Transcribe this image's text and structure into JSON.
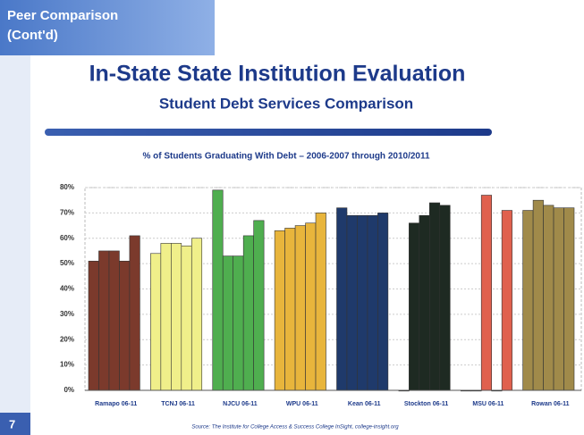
{
  "slide": {
    "section": "Peer Comparison",
    "section_sub": "(Cont'd)",
    "title": "In-State State Institution Evaluation",
    "subtitle": "Student Debt Services Comparison",
    "source": "Source: The Institute for College Access & Success College InSight, college-insight.org",
    "page": "7"
  },
  "chart_data": {
    "type": "bar",
    "title": "% of Students Graduating With Debt – 2006-2007 through 2010/2011",
    "ylim": [
      0,
      80
    ],
    "yticks": [
      {
        "value": 0,
        "label": "0%"
      },
      {
        "value": 10,
        "label": "10%"
      },
      {
        "value": 20,
        "label": "20%"
      },
      {
        "value": 30,
        "label": "30%"
      },
      {
        "value": 40,
        "label": "40%"
      },
      {
        "value": 50,
        "label": "50%"
      },
      {
        "value": 60,
        "label": "60%"
      },
      {
        "value": 70,
        "label": "70%"
      },
      {
        "value": 80,
        "label": "80%"
      }
    ],
    "grid": true,
    "series": [
      {
        "name": "Ramapo 06-11",
        "color": "#7b3a2c",
        "values": [
          51,
          55,
          55,
          51,
          61
        ]
      },
      {
        "name": "TCNJ 06-11",
        "color": "#f0ef8a",
        "values": [
          54,
          58,
          58,
          57,
          60
        ]
      },
      {
        "name": "NJCU 06-11",
        "color": "#4fae4f",
        "values": [
          79,
          53,
          53,
          61,
          67
        ]
      },
      {
        "name": "WPU 06-11",
        "color": "#e8b53c",
        "values": [
          63,
          64,
          65,
          66,
          70
        ]
      },
      {
        "name": "Kean 06-11",
        "color": "#1f3a6b",
        "values": [
          72,
          69,
          69,
          69,
          70
        ]
      },
      {
        "name": "Stockton 06-11",
        "color": "#1e2a22",
        "values": [
          0,
          66,
          69,
          74,
          73
        ]
      },
      {
        "name": "MSU 06-11",
        "color": "#e0614e",
        "values": [
          0,
          0,
          77,
          0,
          71
        ]
      },
      {
        "name": "Rowan 06-11",
        "color": "#a08a4a",
        "values": [
          71,
          75,
          73,
          72,
          72
        ]
      }
    ]
  }
}
